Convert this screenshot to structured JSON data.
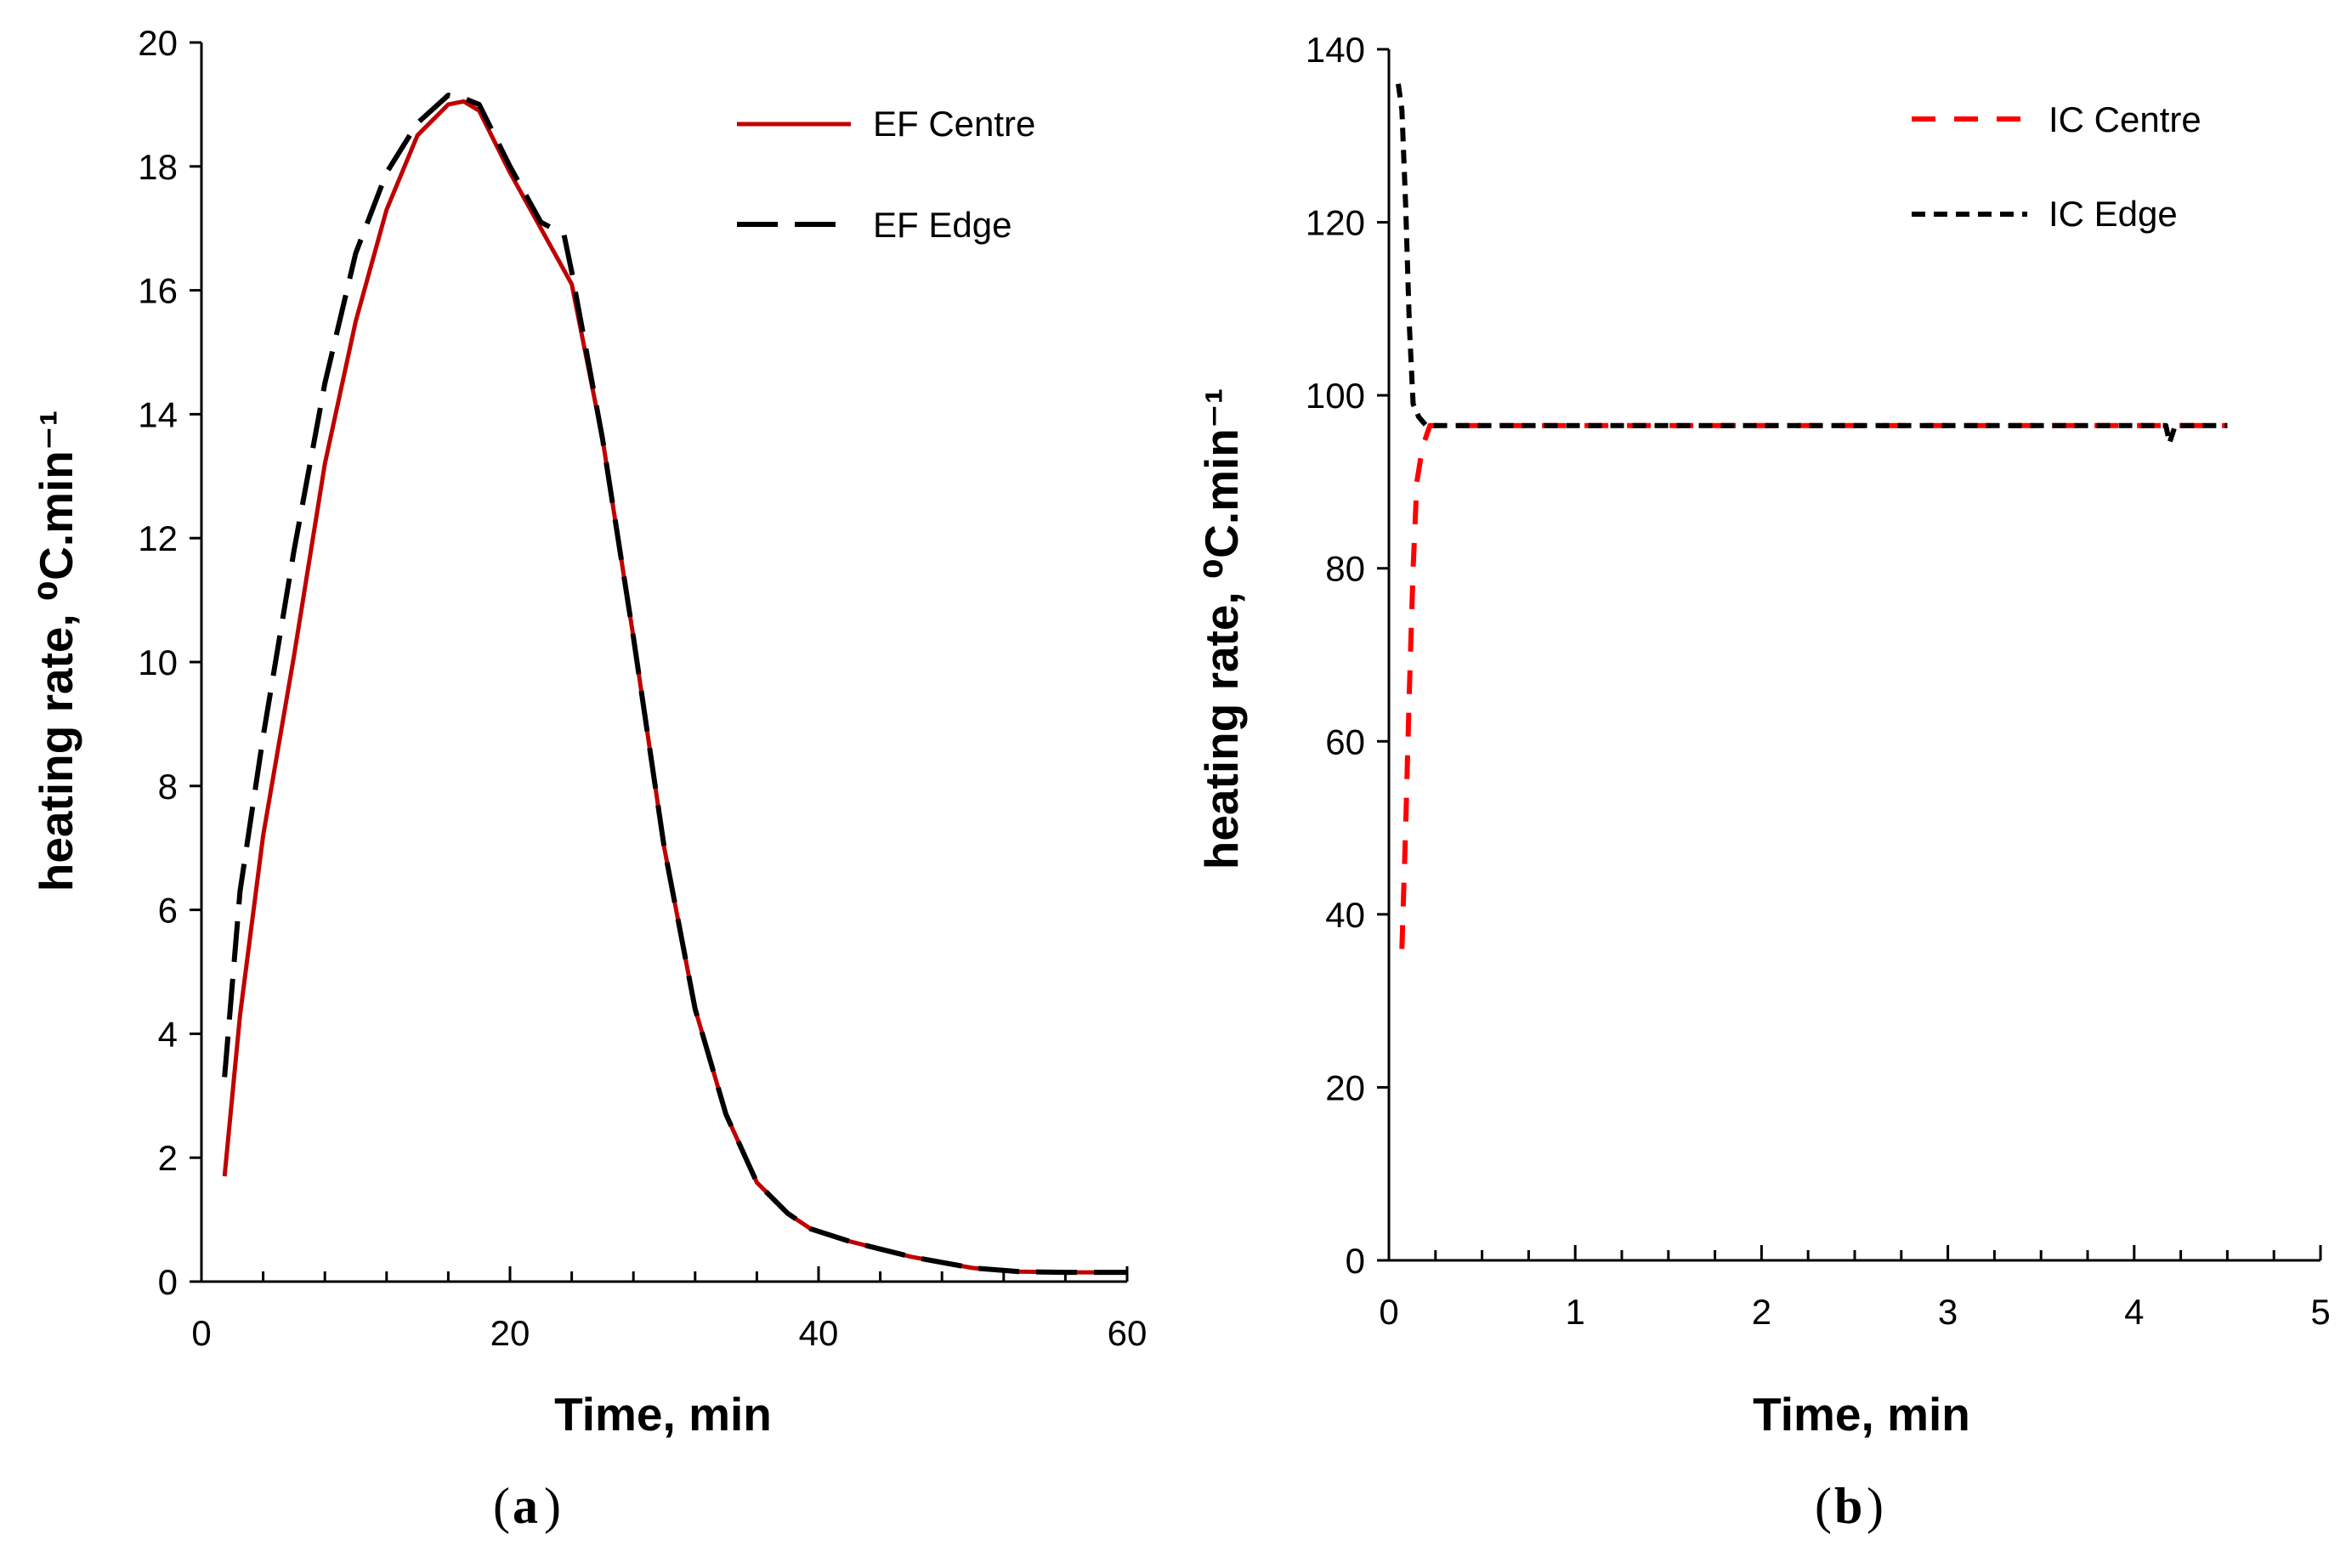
{
  "chart_data": [
    {
      "type": "line",
      "panel_label": "(a)",
      "panel_letter": "a",
      "xlabel": "Time, min",
      "ylabel": "heating rate, ⁰C.min⁻¹",
      "xlim": [
        0,
        60
      ],
      "ylim": [
        0,
        20
      ],
      "xticks": [
        0,
        20,
        40,
        60
      ],
      "yticks": [
        0,
        2,
        4,
        6,
        8,
        10,
        12,
        14,
        16,
        18,
        20
      ],
      "grid": false,
      "legend_position": "top-right",
      "series": [
        {
          "name": "EF Centre",
          "color": "#c00000",
          "style": "solid",
          "x": [
            1.5,
            2.5,
            4,
            6,
            8,
            10,
            12,
            14,
            16,
            17,
            18,
            20,
            22,
            24,
            26,
            28,
            30,
            32,
            34,
            36,
            38,
            39.5,
            42,
            46,
            50,
            53,
            56,
            60
          ],
          "y": [
            1.7,
            4.3,
            7.2,
            10.1,
            13.2,
            15.5,
            17.3,
            18.5,
            19.0,
            19.05,
            18.9,
            17.9,
            17.0,
            16.1,
            13.6,
            10.4,
            7.0,
            4.4,
            2.7,
            1.6,
            1.1,
            0.85,
            0.65,
            0.4,
            0.22,
            0.16,
            0.15,
            0.15
          ]
        },
        {
          "name": "EF Edge",
          "color": "#000000",
          "style": "long-dash",
          "x": [
            1.5,
            2.5,
            4,
            6,
            8,
            10,
            12,
            14,
            16,
            17,
            18,
            20,
            22,
            23.5,
            24,
            26,
            28,
            30,
            32,
            34,
            36,
            38,
            39.5,
            42,
            46,
            50,
            53,
            56,
            60
          ],
          "y": [
            3.3,
            6.3,
            8.8,
            11.8,
            14.5,
            16.6,
            17.9,
            18.7,
            19.15,
            19.1,
            19.0,
            18.0,
            17.1,
            16.9,
            16.3,
            13.6,
            10.4,
            7.0,
            4.4,
            2.7,
            1.6,
            1.1,
            0.85,
            0.65,
            0.4,
            0.22,
            0.16,
            0.15,
            0.15
          ]
        }
      ]
    },
    {
      "type": "line",
      "panel_label": "(b)",
      "panel_letter": "b",
      "xlabel": "Time, min",
      "ylabel": "heating rate, ⁰C.min⁻¹",
      "xlim": [
        0,
        5
      ],
      "ylim": [
        0,
        140
      ],
      "xticks": [
        0,
        1,
        2,
        3,
        4,
        5
      ],
      "yticks": [
        0,
        20,
        40,
        60,
        80,
        100,
        120,
        140
      ],
      "grid": false,
      "legend_position": "top-right",
      "series": [
        {
          "name": "IC Centre",
          "color": "#ff0000",
          "style": "dash",
          "x": [
            0.07,
            0.09,
            0.11,
            0.13,
            0.15,
            0.18,
            0.22,
            0.3,
            1,
            2,
            3,
            4,
            4.5
          ],
          "y": [
            36,
            50,
            66,
            80,
            90,
            94,
            96.5,
            96.5,
            96.5,
            96.5,
            96.5,
            96.5,
            96.5
          ]
        },
        {
          "name": "IC Edge",
          "color": "#000000",
          "style": "short-dash",
          "x": [
            0.05,
            0.07,
            0.09,
            0.11,
            0.13,
            0.16,
            0.2,
            0.3,
            1,
            2,
            3,
            4,
            4.17,
            4.19,
            4.22,
            4.25,
            4.5
          ],
          "y": [
            136,
            133,
            122,
            108,
            99,
            97.5,
            96.5,
            96.5,
            96.5,
            96.5,
            96.5,
            96.5,
            96.5,
            94.5,
            96.5,
            96.5,
            96.5
          ]
        }
      ]
    }
  ]
}
